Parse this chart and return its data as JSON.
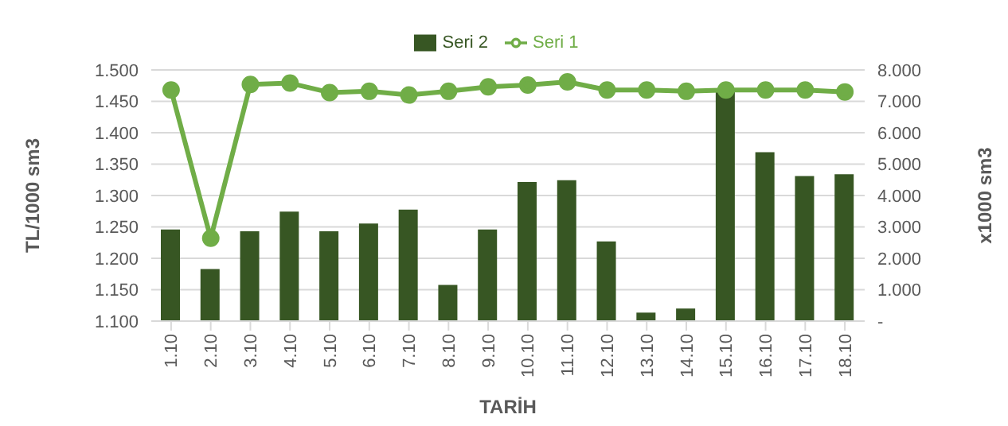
{
  "chart_data": {
    "type": "bar",
    "xlabel": "TARİH",
    "ylabel": "TL/1000 sm3",
    "y2label": "x1000 sm3",
    "categories": [
      "1.10",
      "2.10",
      "3.10",
      "4.10",
      "5.10",
      "6.10",
      "7.10",
      "8.10",
      "9.10",
      "10.10",
      "11.10",
      "12.10",
      "13.10",
      "14.10",
      "15.10",
      "16.10",
      "17.10",
      "18.10"
    ],
    "series": [
      {
        "name": "Seri 2",
        "axis": "y2",
        "color": "#375623",
        "values": [
          2.92,
          1.66,
          2.86,
          3.49,
          2.86,
          3.11,
          3.55,
          1.15,
          2.92,
          4.43,
          4.49,
          2.54,
          0.27,
          0.4,
          7.31,
          5.38,
          4.62,
          4.68
        ]
      },
      {
        "name": "Seri 1",
        "type": "line",
        "axis": "y",
        "color": "#70ad47",
        "values": [
          1.468,
          1.232,
          1.477,
          1.479,
          1.464,
          1.466,
          1.46,
          1.466,
          1.473,
          1.476,
          1.481,
          1.468,
          1.468,
          1.466,
          1.468,
          1.468,
          1.468,
          1.465
        ]
      }
    ],
    "ylim": [
      1.1,
      1.5
    ],
    "yticks": [
      {
        "value": 1.1,
        "label": "1.100"
      },
      {
        "value": 1.15,
        "label": "1.150"
      },
      {
        "value": 1.2,
        "label": "1.200"
      },
      {
        "value": 1.25,
        "label": "1.250"
      },
      {
        "value": 1.3,
        "label": "1.300"
      },
      {
        "value": 1.35,
        "label": "1.350"
      },
      {
        "value": 1.4,
        "label": "1.400"
      },
      {
        "value": 1.45,
        "label": "1.450"
      },
      {
        "value": 1.5,
        "label": "1.500"
      }
    ],
    "y2lim": [
      0,
      8
    ],
    "y2ticks": [
      {
        "value": 0,
        "label": "-"
      },
      {
        "value": 1,
        "label": "1.000"
      },
      {
        "value": 2,
        "label": "2.000"
      },
      {
        "value": 3,
        "label": "3.000"
      },
      {
        "value": 4,
        "label": "4.000"
      },
      {
        "value": 5,
        "label": "5.000"
      },
      {
        "value": 6,
        "label": "6.000"
      },
      {
        "value": 7,
        "label": "7.000"
      },
      {
        "value": 8,
        "label": "8.000"
      }
    ],
    "grid": "y",
    "legend": "top",
    "marker": "circle",
    "line_style": "solid"
  }
}
